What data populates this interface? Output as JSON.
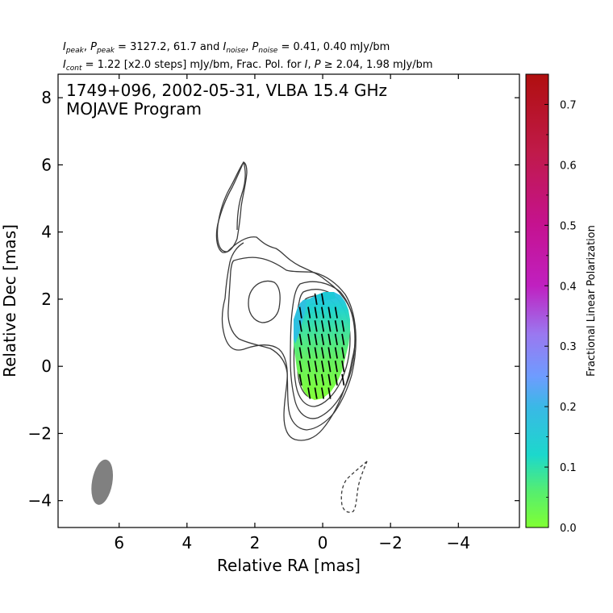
{
  "chart_data": {
    "type": "contour",
    "header": {
      "line1": {
        "i_sym": "I",
        "i_sub": "peak",
        "p_sym": "P",
        "p_sub": "peak",
        "eq1": " = 3127.2, 61.7 and ",
        "in_sym": "I",
        "in_sub": "noise",
        "pn_sym": "P",
        "pn_sub": "noise",
        "eq2": " = 0.41, 0.40 mJy/bm",
        "sep": ", "
      },
      "line2": {
        "ic_sym": "I",
        "ic_sub": "cont",
        "mid": " = 1.22 [x2.0 steps] mJy/bm, Frac. Pol. for ",
        "i2": "I",
        "comma": ", ",
        "p2": "P",
        "tail": " ≥ 2.04, 1.98 mJy/bm"
      }
    },
    "inset_title": [
      "1749+096, 2002-05-31, VLBA 15.4 GHz",
      "MOJAVE Program"
    ],
    "xlabel": "Relative RA [mas]",
    "ylabel": "Relative Dec [mas]",
    "xlim": [
      7.8,
      -5.8
    ],
    "ylim": [
      -4.8,
      8.7
    ],
    "x_ticks": [
      6,
      4,
      2,
      0,
      -2,
      -4
    ],
    "x_tick_labels": [
      "6",
      "4",
      "2",
      "0",
      "−2",
      "−4"
    ],
    "y_ticks": [
      8,
      6,
      4,
      2,
      0,
      -2,
      -4
    ],
    "y_tick_labels": [
      "8",
      "6",
      "4",
      "2",
      "0",
      "−2",
      "−4"
    ],
    "beam": {
      "x": 6.5,
      "y": -3.45,
      "major_mas": 1.35,
      "minor_mas": 0.6,
      "pa_deg": -10,
      "color": "#808080"
    },
    "contour_color": "#3a3a3a",
    "colorbar": {
      "label": "Fractional Linear Polarization",
      "vmin": 0.0,
      "vmax": 0.75,
      "ticks": [
        0.0,
        0.1,
        0.2,
        0.3,
        0.4,
        0.5,
        0.6,
        0.7
      ],
      "tick_labels": [
        "0.0",
        "0.1",
        "0.2",
        "0.3",
        "0.4",
        "0.5",
        "0.6",
        "0.7"
      ],
      "gradient_stops": [
        {
          "v": 0.0,
          "color": "#80ff33"
        },
        {
          "v": 0.06,
          "color": "#55ee70"
        },
        {
          "v": 0.12,
          "color": "#1cd8cc"
        },
        {
          "v": 0.2,
          "color": "#3ab8e6"
        },
        {
          "v": 0.25,
          "color": "#6e9cff"
        },
        {
          "v": 0.32,
          "color": "#9a78f0"
        },
        {
          "v": 0.4,
          "color": "#c020c0"
        },
        {
          "v": 0.5,
          "color": "#c51290"
        },
        {
          "v": 0.62,
          "color": "#c01a4a"
        },
        {
          "v": 0.75,
          "color": "#b00f0f"
        }
      ]
    }
  }
}
